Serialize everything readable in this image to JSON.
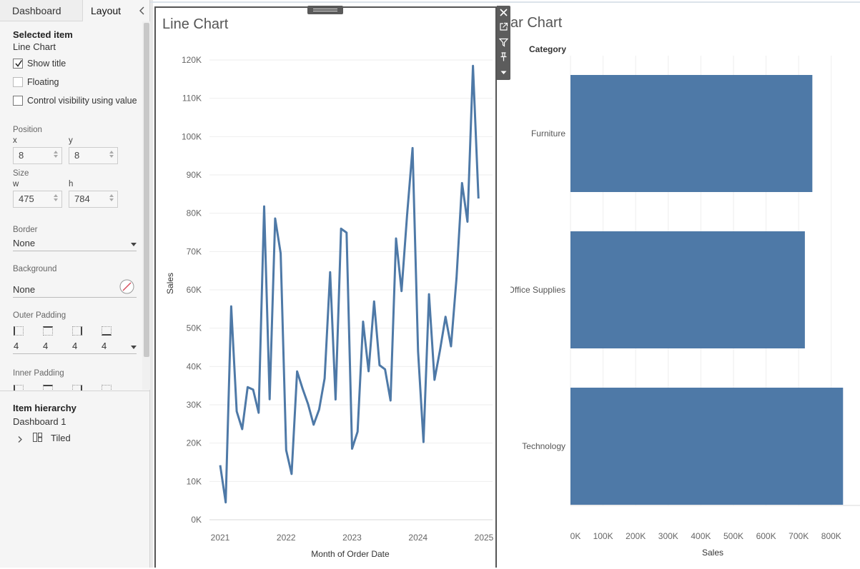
{
  "tabs": {
    "dashboard": "Dashboard",
    "layout": "Layout"
  },
  "selected": {
    "header": "Selected item",
    "name": "Line Chart",
    "show_title": "Show title",
    "floating": "Floating",
    "control_visibility": "Control visibility using value"
  },
  "position": {
    "label": "Position",
    "x_label": "x",
    "y_label": "y",
    "x": "8",
    "y": "8"
  },
  "size": {
    "label": "Size",
    "w_label": "w",
    "h_label": "h",
    "w": "475",
    "h": "784"
  },
  "border": {
    "label": "Border",
    "value": "None"
  },
  "background": {
    "label": "Background",
    "value": "None"
  },
  "outer_padding": {
    "label": "Outer Padding",
    "values": [
      "4",
      "4",
      "4",
      "4"
    ]
  },
  "inner_padding": {
    "label": "Inner Padding"
  },
  "hierarchy": {
    "header": "Item hierarchy",
    "dashboard": "Dashboard 1",
    "tiled": "Tiled"
  },
  "line_chart": {
    "title": "Line Chart",
    "chart_data": {
      "type": "line",
      "title": "Line Chart",
      "xlabel": "Month of Order Date",
      "ylabel": "Sales",
      "x_ticks": [
        "2021",
        "2022",
        "2023",
        "2024",
        "2025"
      ],
      "y_ticks": [
        "0K",
        "10K",
        "20K",
        "30K",
        "40K",
        "50K",
        "60K",
        "70K",
        "80K",
        "90K",
        "100K",
        "110K",
        "120K"
      ],
      "ylim": [
        0,
        120000
      ],
      "x_start": "2021-01",
      "x_end": "2024-12",
      "values": [
        14237,
        4520,
        55691,
        28295,
        23648,
        34595,
        33946,
        27909,
        81777,
        31453,
        78629,
        69546,
        18174,
        11951,
        38726,
        34195,
        30131,
        24797,
        28765,
        36898,
        64596,
        31405,
        75973,
        74919,
        18542,
        22978,
        51716,
        38750,
        56988,
        40344,
        39262,
        31115,
        73410,
        59688,
        79412,
        96999,
        43971,
        20301,
        58872,
        36522,
        44261,
        52982,
        45264,
        63121,
        87867,
        77777,
        118448,
        83829
      ],
      "color": "#4e79a7"
    }
  },
  "bar_chart": {
    "title_visible": "ar Chart",
    "chart_data": {
      "type": "bar",
      "orientation": "horizontal",
      "title": "Bar Chart",
      "categories_header": "Category",
      "categories": [
        "Furniture",
        "Office Supplies",
        "Technology"
      ],
      "values": [
        742000,
        719047,
        836154
      ],
      "xlabel": "Sales",
      "x_ticks": [
        "0K",
        "100K",
        "200K",
        "300K",
        "400K",
        "500K",
        "600K",
        "700K",
        "800K"
      ],
      "xlim": [
        0,
        840000
      ],
      "color": "#4e79a7"
    }
  },
  "icons": {
    "close": "close-icon",
    "popout": "popout-icon",
    "filter": "filter-icon",
    "pin": "pin-icon",
    "more": "more-options-icon",
    "no_fill": "no-fill-icon",
    "tiled": "tiled-layout-icon"
  }
}
